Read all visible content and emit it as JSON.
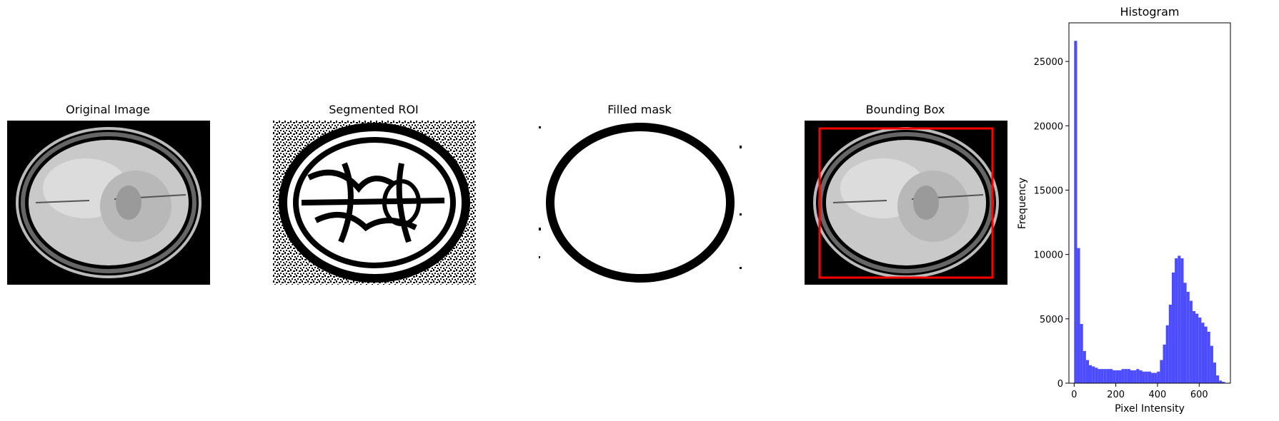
{
  "panels": [
    {
      "title": "Original Image",
      "kind": "original"
    },
    {
      "title": "Segmented ROI",
      "kind": "segmented"
    },
    {
      "title": "Filled mask",
      "kind": "mask"
    },
    {
      "title": "Bounding Box",
      "kind": "bbox"
    }
  ],
  "colors": {
    "bar": "#4d4dff",
    "bbox": "#ff0000",
    "tissue": "#c8c8c8",
    "background": "#000000"
  },
  "chart_data": {
    "type": "bar",
    "title": "Histogram",
    "xlabel": "Pixel Intensity",
    "ylabel": "Frequency",
    "xlim": [
      -25,
      750
    ],
    "ylim": [
      0,
      28000
    ],
    "xticks": [
      0,
      200,
      400,
      600
    ],
    "yticks": [
      0,
      5000,
      10000,
      15000,
      20000,
      25000
    ],
    "bin_width": 14.2,
    "bin_starts": [
      0,
      14.2,
      28.4,
      42.6,
      56.8,
      71,
      85.2,
      99.4,
      113.6,
      127.8,
      142,
      156.2,
      170.4,
      184.6,
      198.8,
      213,
      227.2,
      241.4,
      255.6,
      269.8,
      284,
      298.2,
      312.4,
      326.6,
      340.8,
      355,
      369.2,
      383.4,
      397.6,
      411.8,
      426,
      440.2,
      454.4,
      468.6,
      482.8,
      497,
      511.2,
      525.4,
      539.6,
      553.8,
      568,
      582.2,
      596.4,
      610.6,
      624.8,
      639,
      653.2,
      667.4,
      681.6,
      695.8,
      710
    ],
    "values": [
      26600,
      10500,
      4600,
      2500,
      1800,
      1400,
      1300,
      1200,
      1100,
      1100,
      1100,
      1100,
      1100,
      1000,
      1000,
      1000,
      1100,
      1100,
      1100,
      1000,
      1000,
      1100,
      1000,
      900,
      900,
      900,
      800,
      800,
      900,
      1800,
      3000,
      4500,
      6100,
      8600,
      9700,
      9900,
      9700,
      7800,
      7100,
      6400,
      5600,
      5400,
      5100,
      4700,
      4400,
      4000,
      2900,
      1600,
      600,
      200,
      100
    ]
  }
}
